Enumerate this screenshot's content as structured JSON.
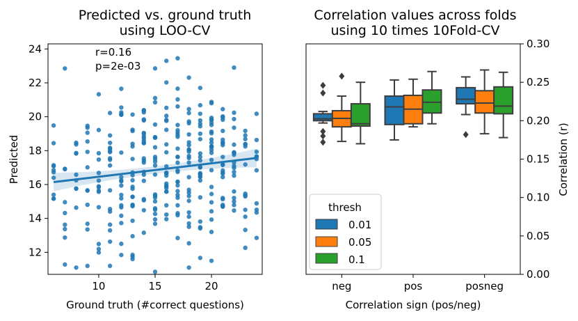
{
  "chart_data": [
    {
      "type": "scatter",
      "title": [
        "Predicted vs. ground truth",
        "using LOO-CV"
      ],
      "xlabel": "Ground truth (#correct questions)",
      "ylabel": "Predicted",
      "xlim": [
        5.5,
        24.5
      ],
      "ylim": [
        10.7,
        24.3
      ],
      "xticks": [
        10,
        15,
        20
      ],
      "yticks": [
        12,
        14,
        16,
        18,
        20,
        22,
        24
      ],
      "annotations": [
        "r=0.16",
        "p=2e-03"
      ],
      "regression": {
        "slope": 0.079,
        "intercept": 15.67,
        "x_range": [
          6,
          24
        ],
        "ci_halfwidth_edge": 0.55,
        "ci_halfwidth_mid": 0.22
      },
      "point_color": "#1f77b4",
      "seed": 12345,
      "points_per_x": [
        [
          6,
          10
        ],
        [
          7,
          8
        ],
        [
          8,
          9
        ],
        [
          9,
          12
        ],
        [
          10,
          14
        ],
        [
          11,
          16
        ],
        [
          12,
          18
        ],
        [
          13,
          20
        ],
        [
          14,
          22
        ],
        [
          15,
          22
        ],
        [
          16,
          22
        ],
        [
          17,
          24
        ],
        [
          18,
          24
        ],
        [
          19,
          24
        ],
        [
          20,
          24
        ],
        [
          21,
          22
        ],
        [
          22,
          18
        ],
        [
          23,
          14
        ],
        [
          24,
          10
        ]
      ],
      "notable_points": [
        [
          7,
          22.85
        ],
        [
          12,
          21.65
        ],
        [
          16,
          23.3
        ],
        [
          17,
          23.45
        ],
        [
          22,
          22.9
        ],
        [
          15,
          10.85
        ],
        [
          8,
          11.1
        ],
        [
          11,
          11.2
        ],
        [
          18,
          11.1
        ],
        [
          24,
          12.85
        ],
        [
          13,
          11.6
        ],
        [
          20,
          11.5
        ]
      ]
    },
    {
      "type": "box",
      "title": [
        "Correlation values across folds",
        "using 10 times 10Fold-CV"
      ],
      "xlabel": "Correlation sign (pos/neg)",
      "ylabel": "Correlation (r)",
      "ylim": [
        0.0,
        0.3
      ],
      "yticks": [
        "0.00",
        "0.05",
        "0.10",
        "0.15",
        "0.20",
        "0.25",
        "0.30"
      ],
      "categories": [
        "neg",
        "pos",
        "posneg"
      ],
      "legend": {
        "title": "thresh",
        "entries": [
          "0.01",
          "0.05",
          "0.1"
        ]
      },
      "series": [
        {
          "name": "0.01",
          "color": "#1f77b4",
          "boxes": [
            {
              "whislo": 0.197,
              "q1": 0.2,
              "med": 0.2025,
              "q3": 0.209,
              "whishi": 0.212,
              "fliers": [
                0.172,
                0.18,
                0.186,
                0.236,
                0.246
              ]
            },
            {
              "whislo": 0.175,
              "q1": 0.195,
              "med": 0.218,
              "q3": 0.232,
              "whishi": 0.253,
              "fliers": []
            },
            {
              "whislo": 0.208,
              "q1": 0.222,
              "med": 0.228,
              "q3": 0.243,
              "whishi": 0.257,
              "fliers": [
                0.182
              ]
            }
          ]
        },
        {
          "name": "0.05",
          "color": "#ff7f0e",
          "boxes": [
            {
              "whislo": 0.173,
              "q1": 0.192,
              "med": 0.203,
              "q3": 0.213,
              "whishi": 0.232,
              "fliers": [
                0.258
              ]
            },
            {
              "whislo": 0.192,
              "q1": 0.196,
              "med": 0.215,
              "q3": 0.233,
              "whishi": 0.254,
              "fliers": []
            },
            {
              "whislo": 0.183,
              "q1": 0.21,
              "med": 0.223,
              "q3": 0.239,
              "whishi": 0.266,
              "fliers": []
            }
          ]
        },
        {
          "name": "0.1",
          "color": "#2ca02c",
          "boxes": [
            {
              "whislo": 0.17,
              "q1": 0.193,
              "med": 0.196,
              "q3": 0.222,
              "whishi": 0.25,
              "fliers": []
            },
            {
              "whislo": 0.196,
              "q1": 0.21,
              "med": 0.224,
              "q3": 0.24,
              "whishi": 0.264,
              "fliers": []
            },
            {
              "whislo": 0.178,
              "q1": 0.209,
              "med": 0.219,
              "q3": 0.244,
              "whishi": 0.263,
              "fliers": []
            }
          ]
        }
      ]
    }
  ]
}
